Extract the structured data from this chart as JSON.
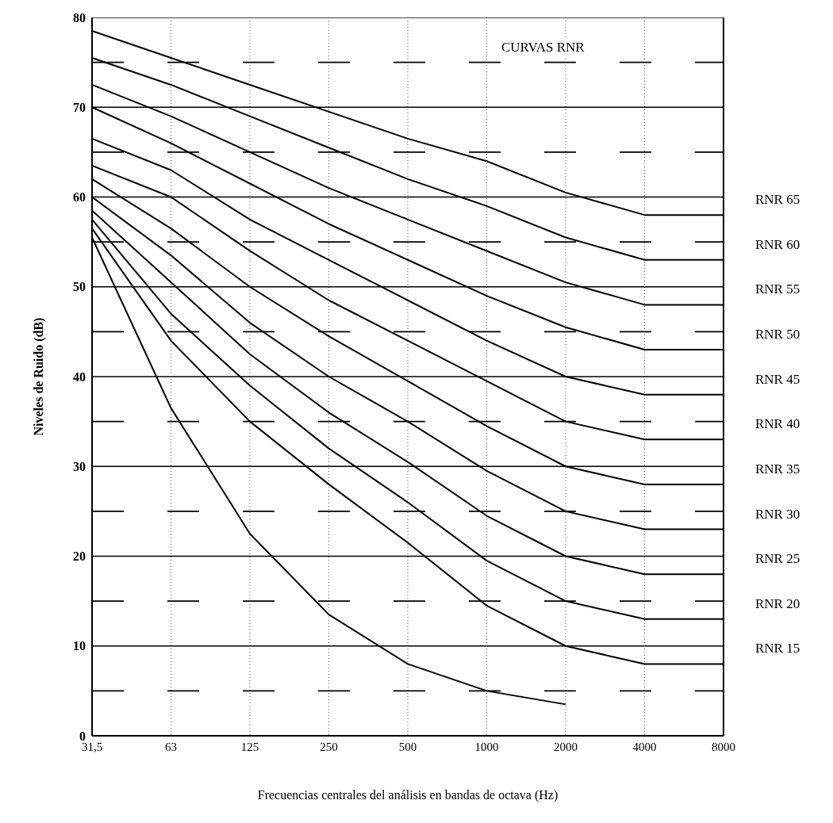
{
  "chart_data": {
    "type": "line",
    "title": "CURVAS RNR",
    "xlabel": "Frecuencias centrales del análisis en bandas de octava (Hz)",
    "ylabel": "Niveles de Ruido (dB)",
    "categories": [
      "31,5",
      "63",
      "125",
      "250",
      "500",
      "1000",
      "2000",
      "4000",
      "8000"
    ],
    "series": [
      {
        "name": "RNR 65",
        "color": "#000000",
        "values": [
          78.5,
          75.5,
          72.5,
          69.5,
          66.5,
          64,
          60.5,
          58,
          58
        ]
      },
      {
        "name": "RNR 60",
        "color": "#000000",
        "values": [
          75.5,
          72.5,
          69,
          65.5,
          62,
          59,
          55.5,
          53,
          53
        ]
      },
      {
        "name": "RNR 55",
        "color": "#000000",
        "values": [
          72.5,
          69,
          65,
          61,
          57.5,
          54,
          50.5,
          48,
          48
        ]
      },
      {
        "name": "RNR 50",
        "color": "#000000",
        "values": [
          70,
          66,
          61.5,
          57,
          53,
          49,
          45.5,
          43,
          43
        ]
      },
      {
        "name": "RNR 45",
        "color": "#000000",
        "values": [
          66.5,
          63,
          57.5,
          53,
          48.5,
          44,
          40,
          38,
          38
        ]
      },
      {
        "name": "RNR 40",
        "color": "#000000",
        "values": [
          63.5,
          60,
          54,
          48.5,
          44,
          39.5,
          35,
          33,
          33
        ]
      },
      {
        "name": "RNR 35",
        "color": "#000000",
        "values": [
          62,
          56.5,
          50,
          44.5,
          39.5,
          34.5,
          30,
          28,
          28
        ]
      },
      {
        "name": "RNR 30",
        "color": "#000000",
        "values": [
          60,
          53.5,
          46,
          40,
          35,
          29.5,
          25,
          23,
          23
        ]
      },
      {
        "name": "RNR 25",
        "color": "#000000",
        "values": [
          58.5,
          50.5,
          42.5,
          36,
          30.5,
          24.5,
          20,
          18,
          18
        ]
      },
      {
        "name": "RNR 20",
        "color": "#000000",
        "values": [
          57.5,
          47,
          39,
          32,
          26,
          19.5,
          15,
          13,
          13
        ]
      },
      {
        "name": "RNR 15",
        "color": "#000000",
        "values": [
          56.5,
          44,
          35,
          28,
          21.5,
          14.5,
          10,
          8,
          8
        ]
      },
      {
        "color": "#000000",
        "values": [
          55.5,
          36.5,
          22.5,
          13.5,
          8,
          5,
          3.5,
          null,
          null
        ]
      }
    ],
    "ylim": [
      0,
      80
    ],
    "yticks": [
      0,
      {
        "value": 5,
        "label": null
      },
      10,
      {
        "value": 15,
        "label": null
      },
      20,
      {
        "value": 25,
        "label": null
      },
      30,
      {
        "value": 35,
        "label": null
      },
      40,
      {
        "value": 45,
        "label": null
      },
      50,
      {
        "value": 55,
        "label": null
      },
      60,
      {
        "value": 65,
        "label": null
      },
      70,
      {
        "value": 75,
        "label": null
      },
      80
    ],
    "grid": true,
    "marker": "none",
    "line_style": "solid"
  }
}
